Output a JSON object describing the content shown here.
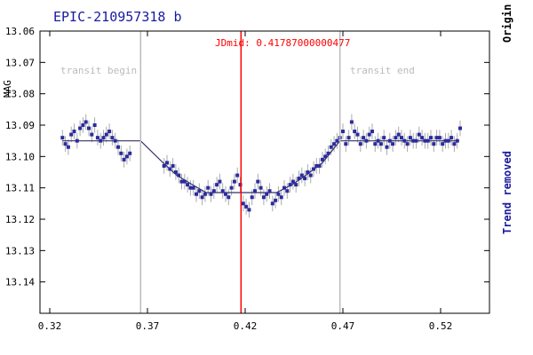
{
  "chart_data": {
    "type": "scatter",
    "title": "EPIC-210957318 b",
    "ylabel": "MAG",
    "right_label_top": "Origin",
    "right_label_bottom": "Trend removed",
    "xlim": [
      0.315,
      0.545
    ],
    "ylim": [
      13.06,
      13.15
    ],
    "y_inverted": true,
    "x_ticks": [
      0.32,
      0.37,
      0.42,
      0.47,
      0.52
    ],
    "x_tick_labels": [
      "0.32",
      "0.37",
      "0.42",
      "0.47",
      "0.52"
    ],
    "y_ticks": [
      13.06,
      13.07,
      13.08,
      13.09,
      13.1,
      13.11,
      13.12,
      13.13,
      13.14
    ],
    "y_tick_labels": [
      "13.06",
      "13.07",
      "13.08",
      "13.09",
      "13.10",
      "13.11",
      "13.12",
      "13.13",
      "13.14"
    ],
    "jd_mid": {
      "label": "JDmid: 0.41787000000477",
      "x": 0.41787,
      "color": "#ff0000"
    },
    "transit_begin": {
      "label": "transit begin",
      "x": 0.3665,
      "color": "#bbbbbb"
    },
    "transit_end": {
      "label": "transit end",
      "x": 0.4685,
      "color": "#bbbbbb"
    },
    "colors": {
      "points": "#2b2b9e",
      "errorbars": "#aaaaaa",
      "model": "#333366",
      "frame": "#000000",
      "origin_label": "#000000",
      "trend_label": "#1a1aa0"
    },
    "error_half": 0.0025,
    "model": {
      "x": [
        0.3265,
        0.353,
        0.3665,
        0.378,
        0.385,
        0.393,
        0.4,
        0.436,
        0.444,
        0.451,
        0.4595,
        0.4685,
        0.5295
      ],
      "y": [
        13.095,
        13.095,
        13.095,
        13.102,
        13.106,
        13.109,
        13.1115,
        13.1115,
        13.109,
        13.106,
        13.102,
        13.095,
        13.095
      ]
    },
    "points": {
      "x": [
        0.3265,
        0.328,
        0.3295,
        0.331,
        0.3325,
        0.334,
        0.3355,
        0.337,
        0.3385,
        0.34,
        0.3415,
        0.343,
        0.3445,
        0.346,
        0.3475,
        0.349,
        0.3505,
        0.352,
        0.3535,
        0.355,
        0.3565,
        0.358,
        0.3595,
        0.361,
        0.3785,
        0.38,
        0.3815,
        0.383,
        0.3845,
        0.386,
        0.3875,
        0.389,
        0.3905,
        0.392,
        0.3935,
        0.395,
        0.3965,
        0.398,
        0.3995,
        0.401,
        0.4025,
        0.404,
        0.4055,
        0.407,
        0.4085,
        0.41,
        0.4115,
        0.413,
        0.4145,
        0.416,
        0.4175,
        0.419,
        0.4205,
        0.422,
        0.4235,
        0.425,
        0.4265,
        0.428,
        0.4295,
        0.431,
        0.4325,
        0.434,
        0.4355,
        0.437,
        0.4385,
        0.44,
        0.4415,
        0.443,
        0.4445,
        0.446,
        0.4475,
        0.449,
        0.4505,
        0.452,
        0.4535,
        0.455,
        0.4565,
        0.458,
        0.4595,
        0.461,
        0.4625,
        0.464,
        0.4655,
        0.467,
        0.4685,
        0.47,
        0.4715,
        0.473,
        0.4745,
        0.476,
        0.4775,
        0.479,
        0.4805,
        0.482,
        0.4835,
        0.485,
        0.4865,
        0.488,
        0.4895,
        0.491,
        0.4925,
        0.494,
        0.4955,
        0.497,
        0.4985,
        0.5,
        0.5015,
        0.503,
        0.5045,
        0.506,
        0.5075,
        0.509,
        0.5105,
        0.512,
        0.5135,
        0.515,
        0.5165,
        0.518,
        0.5195,
        0.521,
        0.5225,
        0.524,
        0.5255,
        0.527,
        0.5285,
        0.53
      ],
      "y": [
        13.094,
        13.096,
        13.097,
        13.093,
        13.092,
        13.095,
        13.091,
        13.09,
        13.089,
        13.091,
        13.093,
        13.09,
        13.094,
        13.095,
        13.094,
        13.093,
        13.092,
        13.094,
        13.095,
        13.097,
        13.099,
        13.101,
        13.1,
        13.099,
        13.103,
        13.102,
        13.104,
        13.103,
        13.105,
        13.106,
        13.108,
        13.108,
        13.109,
        13.11,
        13.11,
        13.112,
        13.111,
        13.113,
        13.112,
        13.11,
        13.112,
        13.111,
        13.109,
        13.108,
        13.111,
        13.112,
        13.113,
        13.11,
        13.108,
        13.106,
        13.109,
        13.115,
        13.116,
        13.117,
        13.113,
        13.111,
        13.108,
        13.11,
        13.113,
        13.112,
        13.111,
        13.115,
        13.114,
        13.112,
        13.113,
        13.11,
        13.111,
        13.109,
        13.108,
        13.109,
        13.107,
        13.106,
        13.107,
        13.105,
        13.106,
        13.104,
        13.103,
        13.103,
        13.101,
        13.1,
        13.099,
        13.097,
        13.096,
        13.095,
        13.094,
        13.092,
        13.096,
        13.094,
        13.089,
        13.092,
        13.093,
        13.096,
        13.094,
        13.095,
        13.093,
        13.092,
        13.096,
        13.095,
        13.096,
        13.094,
        13.097,
        13.095,
        13.096,
        13.094,
        13.093,
        13.094,
        13.095,
        13.096,
        13.094,
        13.095,
        13.095,
        13.093,
        13.094,
        13.095,
        13.095,
        13.094,
        13.096,
        13.094,
        13.094,
        13.096,
        13.095,
        13.095,
        13.094,
        13.096,
        13.095,
        13.091
      ]
    }
  }
}
